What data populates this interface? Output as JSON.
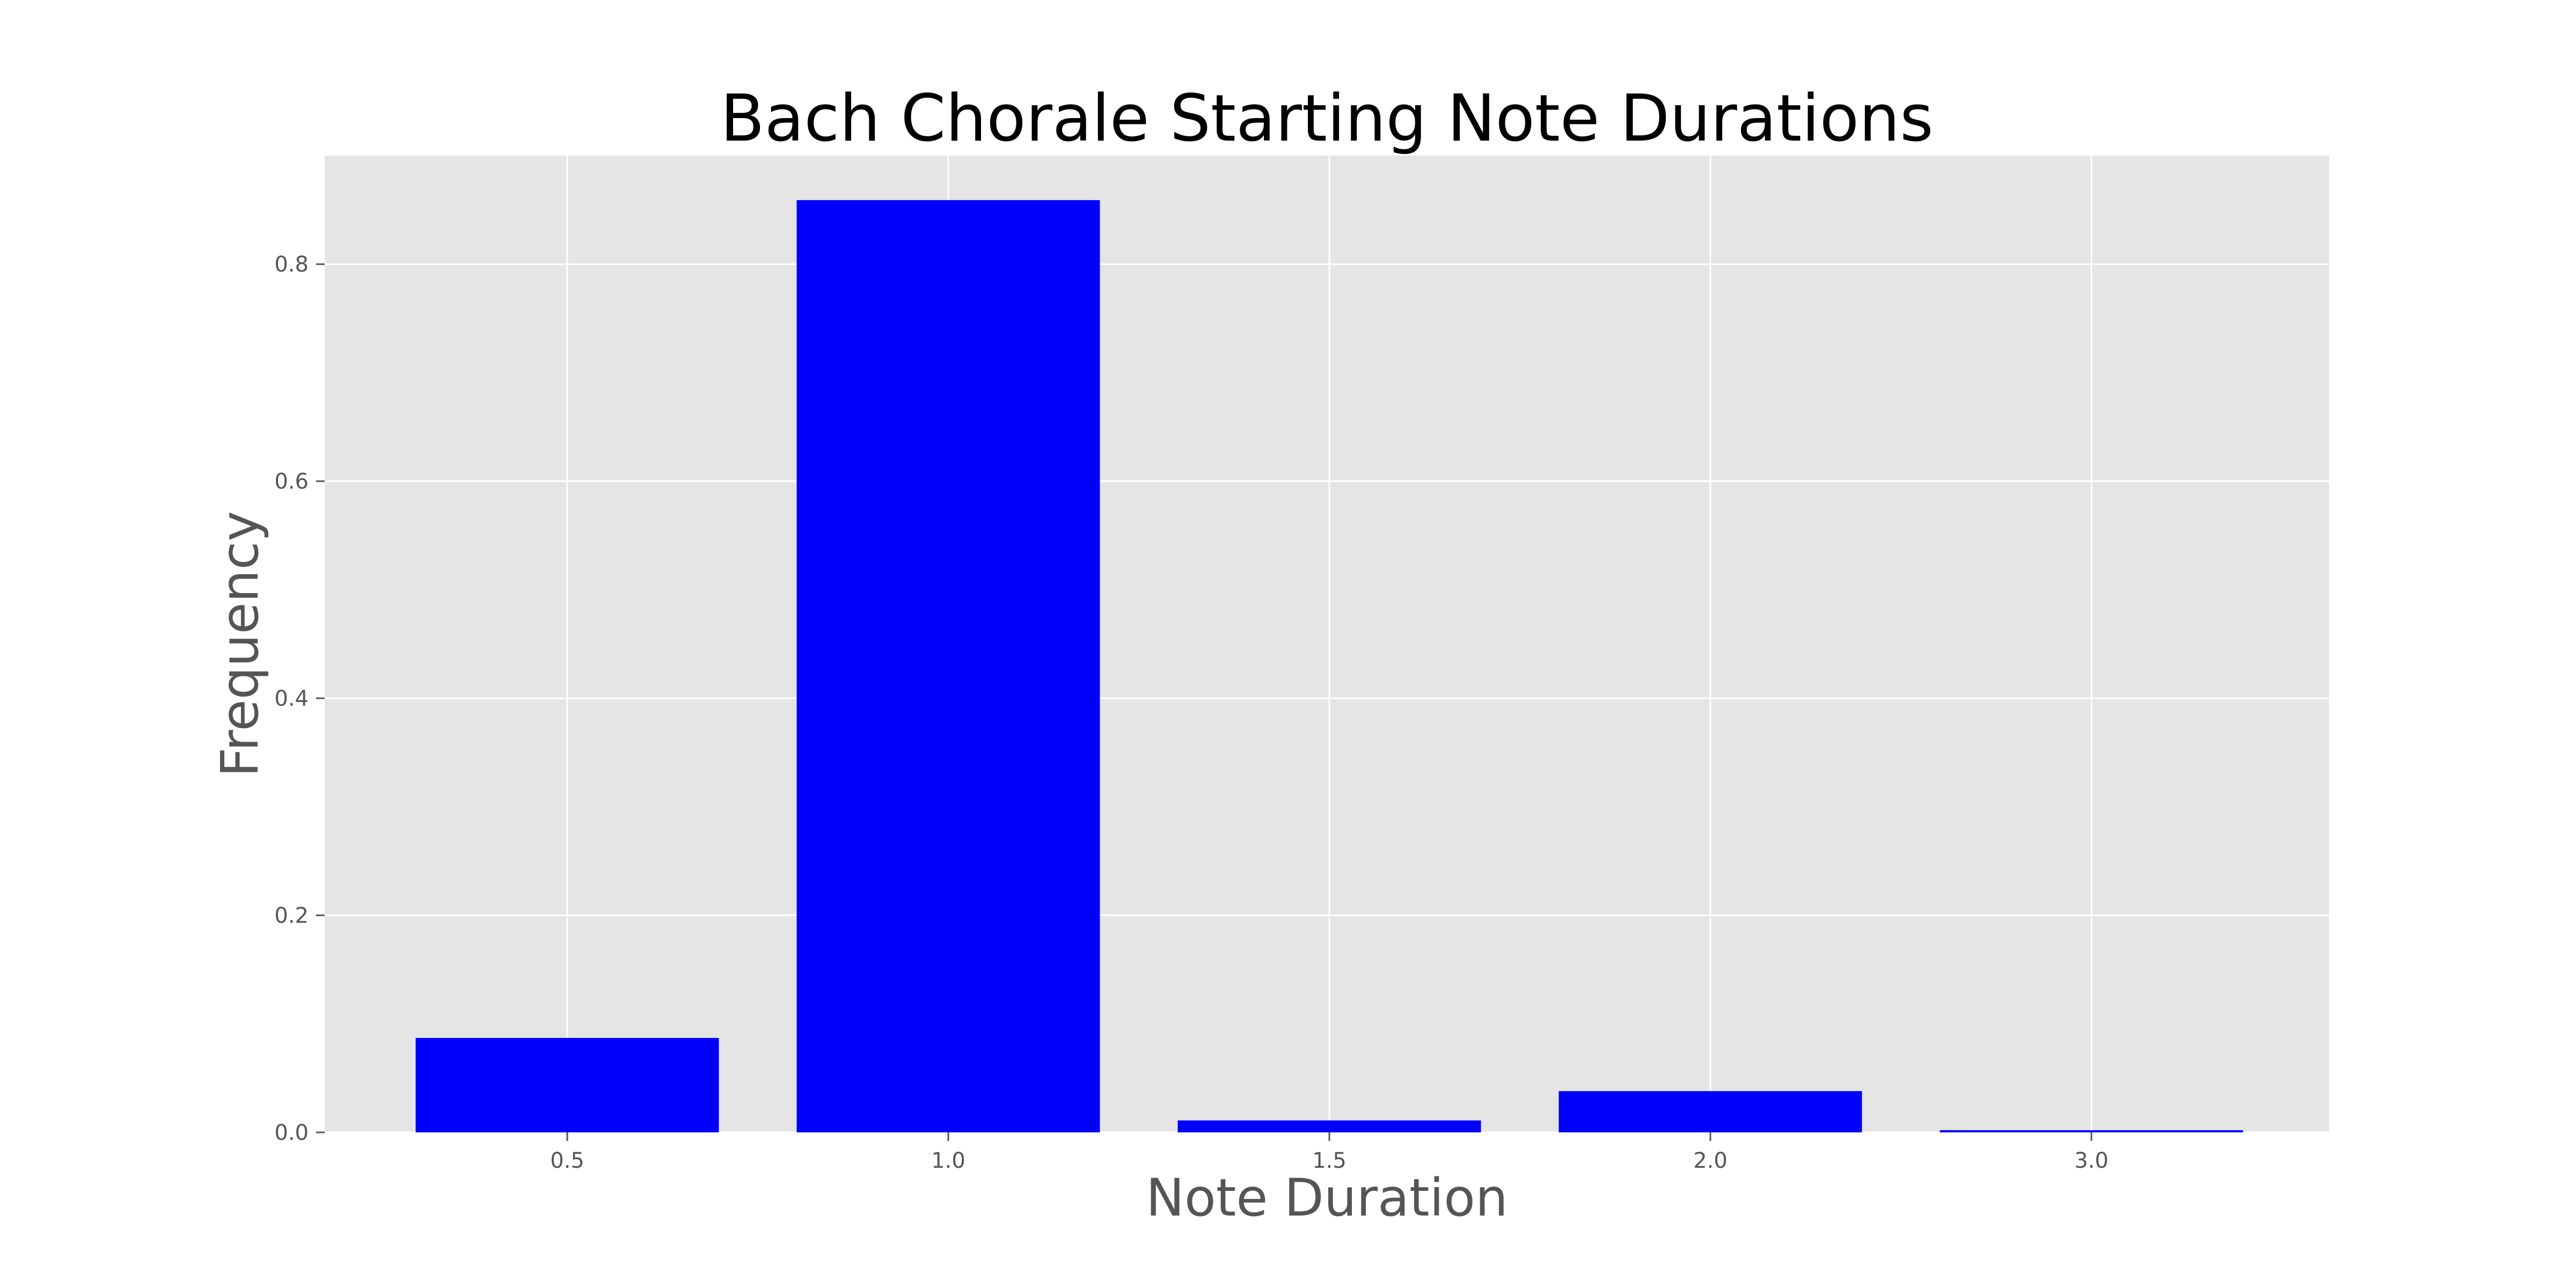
{
  "chart_data": {
    "type": "bar",
    "title": "Bach Chorale Starting Note Durations",
    "xlabel": "Note Duration",
    "ylabel": "Frequency",
    "categories": [
      "0.5",
      "1.0",
      "1.5",
      "2.0",
      "3.0"
    ],
    "values": [
      0.087,
      0.859,
      0.011,
      0.038,
      0.002
    ],
    "ylim": [
      0,
      0.9
    ],
    "yticks": [
      "0.0",
      "0.2",
      "0.4",
      "0.6",
      "0.8"
    ],
    "grid": true,
    "legend": "none",
    "colors": {
      "bar": "#0000ff",
      "plot_background": "#e5e5e5",
      "grid": "#ffffff",
      "title": "#000000",
      "axis_text": "#555555"
    }
  }
}
